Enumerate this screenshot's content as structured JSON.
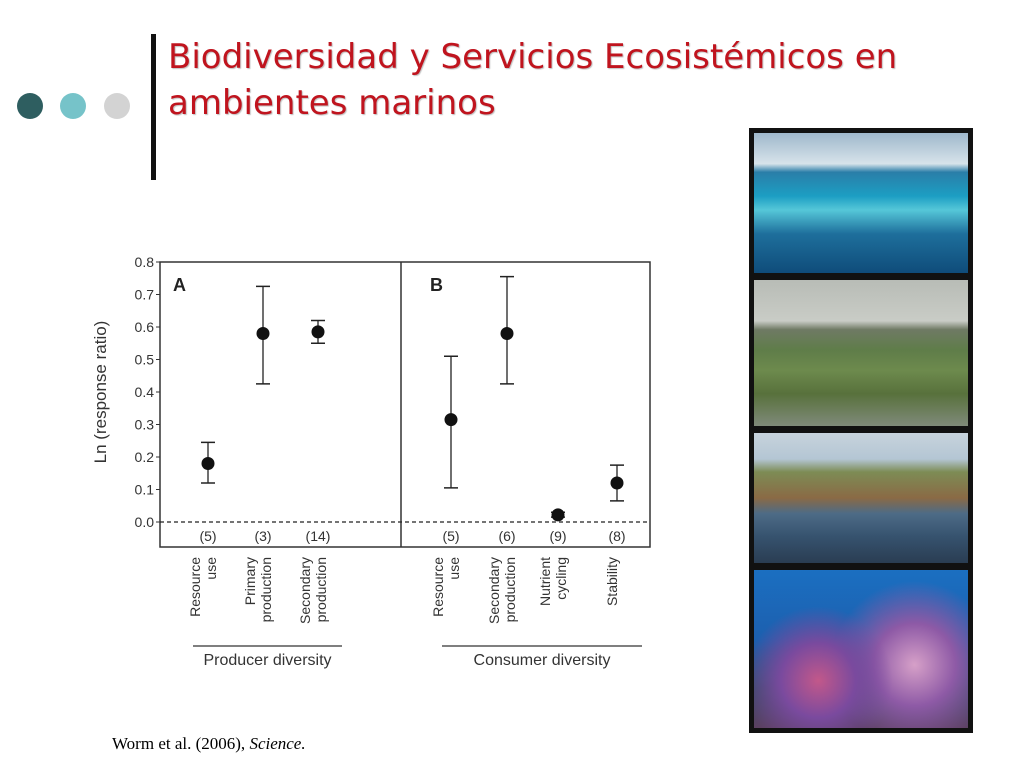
{
  "slide": {
    "title": "Biodiversidad y Servicios Ecosistémicos en ambientes marinos",
    "title_color": "#c0141e",
    "citation_authors": "Worm et al. (2006),",
    "citation_journal": "Science."
  },
  "decor": {
    "dot_colors": [
      "#2e5e60",
      "#76c3c9",
      "#d3d3d3"
    ],
    "photos": [
      {
        "icon": "coral-reef-aerial-photo"
      },
      {
        "icon": "salt-marsh-photo"
      },
      {
        "icon": "rocky-coast-photo"
      },
      {
        "icon": "coral-reef-fish-photo"
      }
    ]
  },
  "chart_data": {
    "type": "scatter",
    "ylabel": "Ln (response ratio)",
    "ylim": [
      0.0,
      0.8
    ],
    "yticks": [
      "0.0",
      "0.1",
      "0.2",
      "0.3",
      "0.4",
      "0.5",
      "0.6",
      "0.7",
      "0.8"
    ],
    "baseline": 0.0,
    "panels": [
      {
        "label": "A",
        "group_label": "Producer diversity",
        "points": [
          {
            "category": "Resource use",
            "n_label": "(5)",
            "value": 0.18,
            "lower": 0.12,
            "upper": 0.245
          },
          {
            "category": "Primary production",
            "n_label": "(3)",
            "value": 0.58,
            "lower": 0.425,
            "upper": 0.725
          },
          {
            "category": "Secondary production",
            "n_label": "(14)",
            "value": 0.585,
            "lower": 0.55,
            "upper": 0.62
          }
        ]
      },
      {
        "label": "B",
        "group_label": "Consumer diversity",
        "points": [
          {
            "category": "Resource use",
            "n_label": "(5)",
            "value": 0.315,
            "lower": 0.105,
            "upper": 0.51
          },
          {
            "category": "Secondary production",
            "n_label": "(6)",
            "value": 0.58,
            "lower": 0.425,
            "upper": 0.755
          },
          {
            "category": "Nutrient cycling",
            "n_label": "(9)",
            "value": 0.022,
            "lower": 0.015,
            "upper": 0.03
          },
          {
            "category": "Stability",
            "n_label": "(8)",
            "value": 0.12,
            "lower": 0.065,
            "upper": 0.175
          }
        ]
      }
    ]
  }
}
